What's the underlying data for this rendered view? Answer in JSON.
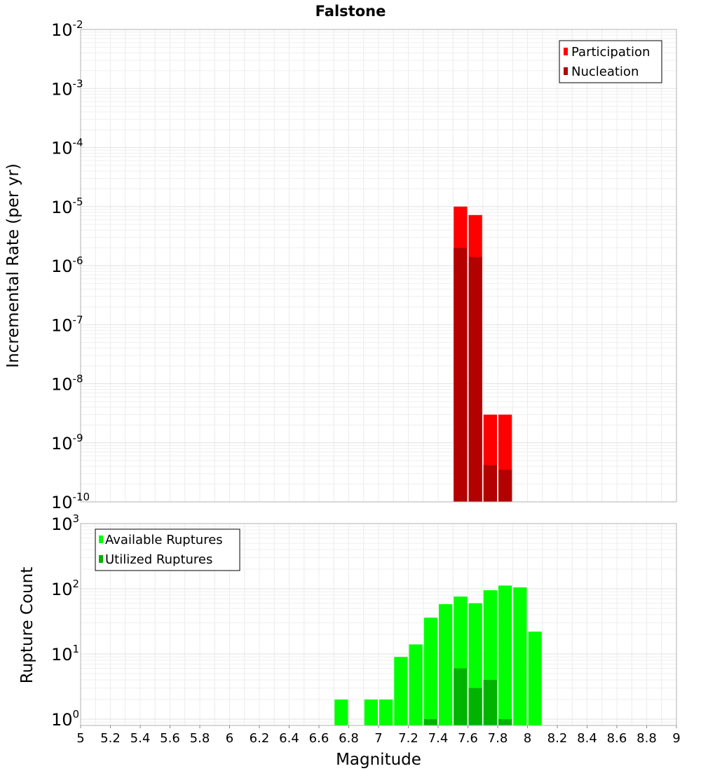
{
  "chart_data": [
    {
      "type": "bar",
      "title": "Falstone",
      "ylabel": "Incremental Rate (per yr)",
      "xlabel": "",
      "yscale": "log",
      "ylim": [
        1e-10,
        0.01
      ],
      "xlim": [
        5,
        9
      ],
      "grid": true,
      "legend_position": "top-right",
      "legend": [
        "Participation",
        "Nucleation"
      ],
      "x": [
        7.55,
        7.65,
        7.75,
        7.85
      ],
      "bin_width": 0.1,
      "series": [
        {
          "name": "Participation",
          "color": "#ff0000",
          "values": [
            1e-05,
            7.2e-06,
            3e-09,
            3e-09
          ]
        },
        {
          "name": "Nucleation",
          "color": "#b30000",
          "values": [
            2e-06,
            1.4e-06,
            4.2e-10,
            3.5e-10
          ]
        }
      ]
    },
    {
      "type": "bar",
      "title": "",
      "ylabel": "Rupture Count",
      "xlabel": "Magnitude",
      "yscale": "log",
      "ylim": [
        0.8,
        1000
      ],
      "xlim": [
        5,
        9
      ],
      "grid": true,
      "legend_position": "top-left",
      "legend": [
        "Available Ruptures",
        "Utilized Ruptures"
      ],
      "x": [
        6.75,
        6.95,
        7.05,
        7.15,
        7.25,
        7.35,
        7.45,
        7.55,
        7.65,
        7.75,
        7.85,
        7.95,
        8.05
      ],
      "bin_width": 0.1,
      "series": [
        {
          "name": "Available Ruptures",
          "color": "#00ff00",
          "values": [
            2,
            2,
            2,
            9,
            14,
            36,
            58,
            76,
            60,
            95,
            112,
            105,
            22
          ]
        },
        {
          "name": "Utilized Ruptures",
          "color": "#00b300",
          "values": [
            0,
            0,
            0,
            0,
            0,
            1,
            0,
            6,
            3,
            4,
            1,
            0,
            0
          ]
        }
      ]
    }
  ],
  "x_ticks": [
    "5",
    "5.2",
    "5.4",
    "5.6",
    "5.8",
    "6",
    "6.2",
    "6.4",
    "6.6",
    "6.8",
    "7",
    "7.2",
    "7.4",
    "7.6",
    "7.8",
    "8",
    "8.2",
    "8.4",
    "8.6",
    "8.8",
    "9"
  ],
  "top_y_ticks": [
    {
      "exp": -2,
      "value": 0.01
    },
    {
      "exp": -3,
      "value": 0.001
    },
    {
      "exp": -4,
      "value": 0.0001
    },
    {
      "exp": -5,
      "value": 1e-05
    },
    {
      "exp": -6,
      "value": 1e-06
    },
    {
      "exp": -7,
      "value": 1e-07
    },
    {
      "exp": -8,
      "value": 1e-08
    },
    {
      "exp": -9,
      "value": 1e-09
    },
    {
      "exp": -10,
      "value": 1e-10
    }
  ],
  "bottom_y_ticks": [
    {
      "exp": 3,
      "value": 1000
    },
    {
      "exp": 2,
      "value": 100
    },
    {
      "exp": 1,
      "value": 10
    },
    {
      "exp": 0,
      "value": 1
    }
  ]
}
